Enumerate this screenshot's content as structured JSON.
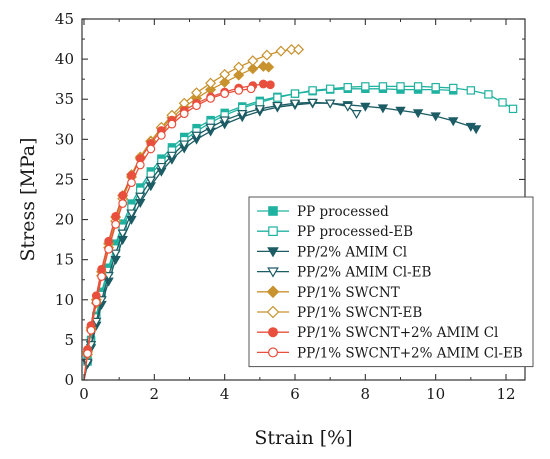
{
  "chart_data": {
    "type": "line",
    "title": "",
    "xlabel": "Strain [%]",
    "ylabel": "Stress [MPa]",
    "xlim": [
      0,
      13
    ],
    "ylim": [
      0,
      45
    ],
    "xticks": [
      0,
      2,
      4,
      6,
      8,
      10,
      12
    ],
    "yticks": [
      0,
      5,
      10,
      15,
      20,
      25,
      30,
      35,
      40,
      45
    ],
    "grid": false,
    "legend_position": "bottom-right",
    "series": [
      {
        "name": "PP processed",
        "color": "#20b2a0",
        "marker": "square",
        "filled": true,
        "points": [
          [
            0,
            0
          ],
          [
            0.1,
            2.5
          ],
          [
            0.2,
            5
          ],
          [
            0.35,
            8
          ],
          [
            0.5,
            11
          ],
          [
            0.7,
            14
          ],
          [
            0.9,
            17
          ],
          [
            1.1,
            19.5
          ],
          [
            1.35,
            22
          ],
          [
            1.6,
            24
          ],
          [
            1.9,
            26
          ],
          [
            2.2,
            27.6
          ],
          [
            2.5,
            29
          ],
          [
            2.85,
            30.3
          ],
          [
            3.2,
            31.4
          ],
          [
            3.6,
            32.4
          ],
          [
            4.0,
            33.3
          ],
          [
            4.5,
            34.1
          ],
          [
            5.0,
            34.8
          ],
          [
            5.5,
            35.3
          ],
          [
            6.0,
            35.7
          ],
          [
            6.5,
            36.0
          ],
          [
            7.0,
            36.2
          ],
          [
            7.5,
            36.3
          ],
          [
            8.0,
            36.3
          ],
          [
            8.5,
            36.3
          ],
          [
            9.0,
            36.2
          ],
          [
            9.5,
            36.2
          ],
          [
            10.0,
            36.2
          ],
          [
            10.5,
            36.1
          ]
        ]
      },
      {
        "name": "PP processed-EB",
        "color": "#20b2a0",
        "marker": "square",
        "filled": false,
        "points": [
          [
            0,
            0
          ],
          [
            0.1,
            2.3
          ],
          [
            0.2,
            4.8
          ],
          [
            0.35,
            7.8
          ],
          [
            0.5,
            10.6
          ],
          [
            0.7,
            13.6
          ],
          [
            0.9,
            16.4
          ],
          [
            1.1,
            19
          ],
          [
            1.35,
            21.5
          ],
          [
            1.6,
            23.6
          ],
          [
            1.9,
            25.6
          ],
          [
            2.2,
            27.2
          ],
          [
            2.5,
            28.6
          ],
          [
            2.85,
            29.9
          ],
          [
            3.2,
            31
          ],
          [
            3.6,
            32.1
          ],
          [
            4.0,
            33
          ],
          [
            4.5,
            33.9
          ],
          [
            5.0,
            34.6
          ],
          [
            5.5,
            35.2
          ],
          [
            6.0,
            35.7
          ],
          [
            6.5,
            36.1
          ],
          [
            7.0,
            36.3
          ],
          [
            7.5,
            36.5
          ],
          [
            8.0,
            36.6
          ],
          [
            8.5,
            36.6
          ],
          [
            9.0,
            36.6
          ],
          [
            9.5,
            36.6
          ],
          [
            10.0,
            36.5
          ],
          [
            10.5,
            36.4
          ],
          [
            11.0,
            36.1
          ],
          [
            11.5,
            35.6
          ],
          [
            11.9,
            34.6
          ],
          [
            12.2,
            33.8
          ]
        ]
      },
      {
        "name": "PP/2% AMIM Cl",
        "color": "#1c5c64",
        "marker": "triangle-down",
        "filled": true,
        "points": [
          [
            0,
            0
          ],
          [
            0.1,
            2
          ],
          [
            0.2,
            4
          ],
          [
            0.35,
            6.8
          ],
          [
            0.5,
            9.4
          ],
          [
            0.7,
            12.3
          ],
          [
            0.9,
            15
          ],
          [
            1.1,
            17.5
          ],
          [
            1.35,
            20
          ],
          [
            1.6,
            22.1
          ],
          [
            1.9,
            24.2
          ],
          [
            2.2,
            26
          ],
          [
            2.5,
            27.5
          ],
          [
            2.85,
            28.9
          ],
          [
            3.2,
            30
          ],
          [
            3.6,
            31
          ],
          [
            4.0,
            31.9
          ],
          [
            4.5,
            32.8
          ],
          [
            5.0,
            33.5
          ],
          [
            5.5,
            34
          ],
          [
            6.0,
            34.3
          ],
          [
            6.5,
            34.5
          ],
          [
            7.0,
            34.5
          ],
          [
            7.5,
            34.3
          ],
          [
            8.0,
            34.1
          ],
          [
            8.5,
            33.9
          ],
          [
            9.0,
            33.6
          ],
          [
            9.5,
            33.3
          ],
          [
            10.0,
            32.9
          ],
          [
            10.5,
            32.3
          ],
          [
            11.0,
            31.6
          ],
          [
            11.15,
            31.3
          ]
        ]
      },
      {
        "name": "PP/2% AMIM Cl-EB",
        "color": "#1c5c64",
        "marker": "triangle-down",
        "filled": false,
        "points": [
          [
            0,
            0
          ],
          [
            0.1,
            2.2
          ],
          [
            0.2,
            4.4
          ],
          [
            0.35,
            7.3
          ],
          [
            0.5,
            10
          ],
          [
            0.7,
            13
          ],
          [
            0.9,
            15.8
          ],
          [
            1.1,
            18.3
          ],
          [
            1.35,
            20.8
          ],
          [
            1.6,
            22.9
          ],
          [
            1.9,
            24.9
          ],
          [
            2.2,
            26.6
          ],
          [
            2.5,
            28
          ],
          [
            2.85,
            29.4
          ],
          [
            3.2,
            30.5
          ],
          [
            3.6,
            31.5
          ],
          [
            4.0,
            32.4
          ],
          [
            4.5,
            33.2
          ],
          [
            5.0,
            33.8
          ],
          [
            5.5,
            34.2
          ],
          [
            6.0,
            34.5
          ],
          [
            6.5,
            34.6
          ],
          [
            7.0,
            34.5
          ],
          [
            7.5,
            34.1
          ],
          [
            7.75,
            33.2
          ]
        ]
      },
      {
        "name": "PP/1% SWCNT",
        "color": "#c8922e",
        "marker": "diamond",
        "filled": true,
        "points": [
          [
            0,
            0
          ],
          [
            0.1,
            3.5
          ],
          [
            0.2,
            6.5
          ],
          [
            0.35,
            10
          ],
          [
            0.5,
            13.5
          ],
          [
            0.7,
            17
          ],
          [
            0.9,
            20.3
          ],
          [
            1.1,
            23
          ],
          [
            1.35,
            25.6
          ],
          [
            1.6,
            27.8
          ],
          [
            1.9,
            29.8
          ],
          [
            2.2,
            31.4
          ],
          [
            2.5,
            32.7
          ],
          [
            2.85,
            34
          ],
          [
            3.2,
            35.1
          ],
          [
            3.6,
            36.2
          ],
          [
            4.0,
            37.1
          ],
          [
            4.4,
            38
          ],
          [
            4.8,
            38.8
          ],
          [
            5.1,
            39.1
          ],
          [
            5.25,
            39
          ]
        ]
      },
      {
        "name": "PP/1% SWCNT-EB",
        "color": "#c8922e",
        "marker": "diamond",
        "filled": false,
        "points": [
          [
            0,
            0
          ],
          [
            0.1,
            3.2
          ],
          [
            0.2,
            6.2
          ],
          [
            0.35,
            9.6
          ],
          [
            0.5,
            13
          ],
          [
            0.7,
            16.5
          ],
          [
            0.9,
            19.8
          ],
          [
            1.1,
            22.6
          ],
          [
            1.35,
            25.3
          ],
          [
            1.6,
            27.6
          ],
          [
            1.9,
            29.7
          ],
          [
            2.2,
            31.5
          ],
          [
            2.5,
            33
          ],
          [
            2.85,
            34.5
          ],
          [
            3.2,
            35.8
          ],
          [
            3.6,
            37
          ],
          [
            4.0,
            38.1
          ],
          [
            4.4,
            39
          ],
          [
            4.8,
            39.8
          ],
          [
            5.2,
            40.5
          ],
          [
            5.6,
            41
          ],
          [
            5.9,
            41.2
          ],
          [
            6.1,
            41.2
          ]
        ]
      },
      {
        "name": "PP/1% SWCNT+2% AMIM Cl",
        "color": "#e84f3c",
        "marker": "circle",
        "filled": true,
        "points": [
          [
            0,
            0
          ],
          [
            0.1,
            3.8
          ],
          [
            0.2,
            6.8
          ],
          [
            0.35,
            10.5
          ],
          [
            0.5,
            13.8
          ],
          [
            0.7,
            17.3
          ],
          [
            0.9,
            20.4
          ],
          [
            1.1,
            23
          ],
          [
            1.35,
            25.5
          ],
          [
            1.6,
            27.6
          ],
          [
            1.9,
            29.5
          ],
          [
            2.2,
            31.1
          ],
          [
            2.5,
            32.4
          ],
          [
            2.85,
            33.6
          ],
          [
            3.2,
            34.5
          ],
          [
            3.6,
            35.3
          ],
          [
            4.0,
            35.9
          ],
          [
            4.4,
            36.4
          ],
          [
            4.8,
            36.7
          ],
          [
            5.1,
            36.9
          ],
          [
            5.3,
            36.8
          ]
        ]
      },
      {
        "name": "PP/1% SWCNT+2% AMIM Cl-EB",
        "color": "#e84f3c",
        "marker": "circle",
        "filled": false,
        "points": [
          [
            0,
            0
          ],
          [
            0.1,
            3.3
          ],
          [
            0.2,
            6.2
          ],
          [
            0.35,
            9.7
          ],
          [
            0.5,
            12.9
          ],
          [
            0.7,
            16.3
          ],
          [
            0.9,
            19.4
          ],
          [
            1.1,
            22
          ],
          [
            1.35,
            24.6
          ],
          [
            1.6,
            26.8
          ],
          [
            1.9,
            28.8
          ],
          [
            2.2,
            30.5
          ],
          [
            2.5,
            31.9
          ],
          [
            2.85,
            33.2
          ],
          [
            3.2,
            34.2
          ],
          [
            3.6,
            35.1
          ],
          [
            4.0,
            35.7
          ],
          [
            4.4,
            36.1
          ],
          [
            4.75,
            36.3
          ]
        ]
      }
    ]
  }
}
